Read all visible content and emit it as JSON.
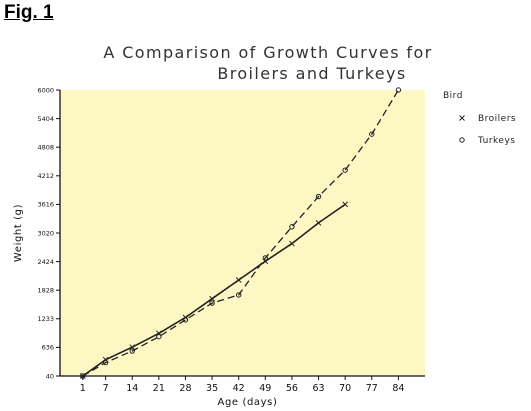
{
  "figure_label": "Fig. 1",
  "chart_data": {
    "type": "line",
    "title_lines": [
      "A Comparison of Growth Curves for",
      "Broilers and Turkeys"
    ],
    "xlabel": "Age (days)",
    "ylabel": "Weight (g)",
    "x_ticks": [
      1,
      7,
      14,
      21,
      28,
      35,
      42,
      49,
      56,
      63,
      70,
      77,
      84
    ],
    "y_ticks": [
      40,
      636,
      1233,
      1828,
      2424,
      3020,
      3616,
      4212,
      4808,
      5404,
      6000
    ],
    "xlim": [
      -5,
      91
    ],
    "ylim": [
      40,
      6000
    ],
    "legend_title": "Bird",
    "legend_position": "right",
    "plot_background": "#fdf7c3",
    "line_color": "#222222",
    "series": [
      {
        "name": "Broilers",
        "marker": "x",
        "line": "solid",
        "x": [
          1,
          7,
          14,
          21,
          28,
          35,
          42,
          49,
          56,
          63,
          70
        ],
        "y": [
          40,
          380,
          640,
          930,
          1260,
          1650,
          2040,
          2430,
          2800,
          3230,
          3616
        ]
      },
      {
        "name": "Turkeys",
        "marker": "o",
        "line": "dashed",
        "x": [
          1,
          7,
          14,
          21,
          28,
          35,
          42,
          49,
          56,
          63,
          70,
          77,
          84
        ],
        "y": [
          40,
          320,
          560,
          860,
          1210,
          1560,
          1730,
          2500,
          3150,
          3780,
          4330,
          5080,
          6000
        ]
      }
    ]
  }
}
